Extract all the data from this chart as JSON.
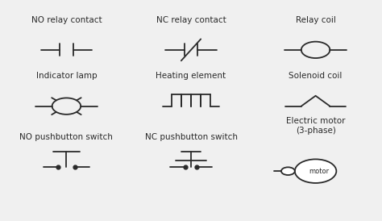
{
  "bg_color": "#f0f0f0",
  "line_color": "#2a2a2a",
  "text_color": "#2a2a2a",
  "title_fontsize": 7.5,
  "symbol_linewidth": 1.3,
  "cols": [
    0.17,
    0.5,
    0.83
  ],
  "rows": [
    0.82,
    0.5,
    0.18
  ],
  "row_labels": [
    [
      "NO relay contact",
      "NC relay contact",
      "Relay coil"
    ],
    [
      "Indicator lamp",
      "Heating element",
      "Solenoid coil"
    ],
    [
      "NO pushbutton switch",
      "NC pushbutton switch",
      "Electric motor\n(3-phase)"
    ]
  ]
}
